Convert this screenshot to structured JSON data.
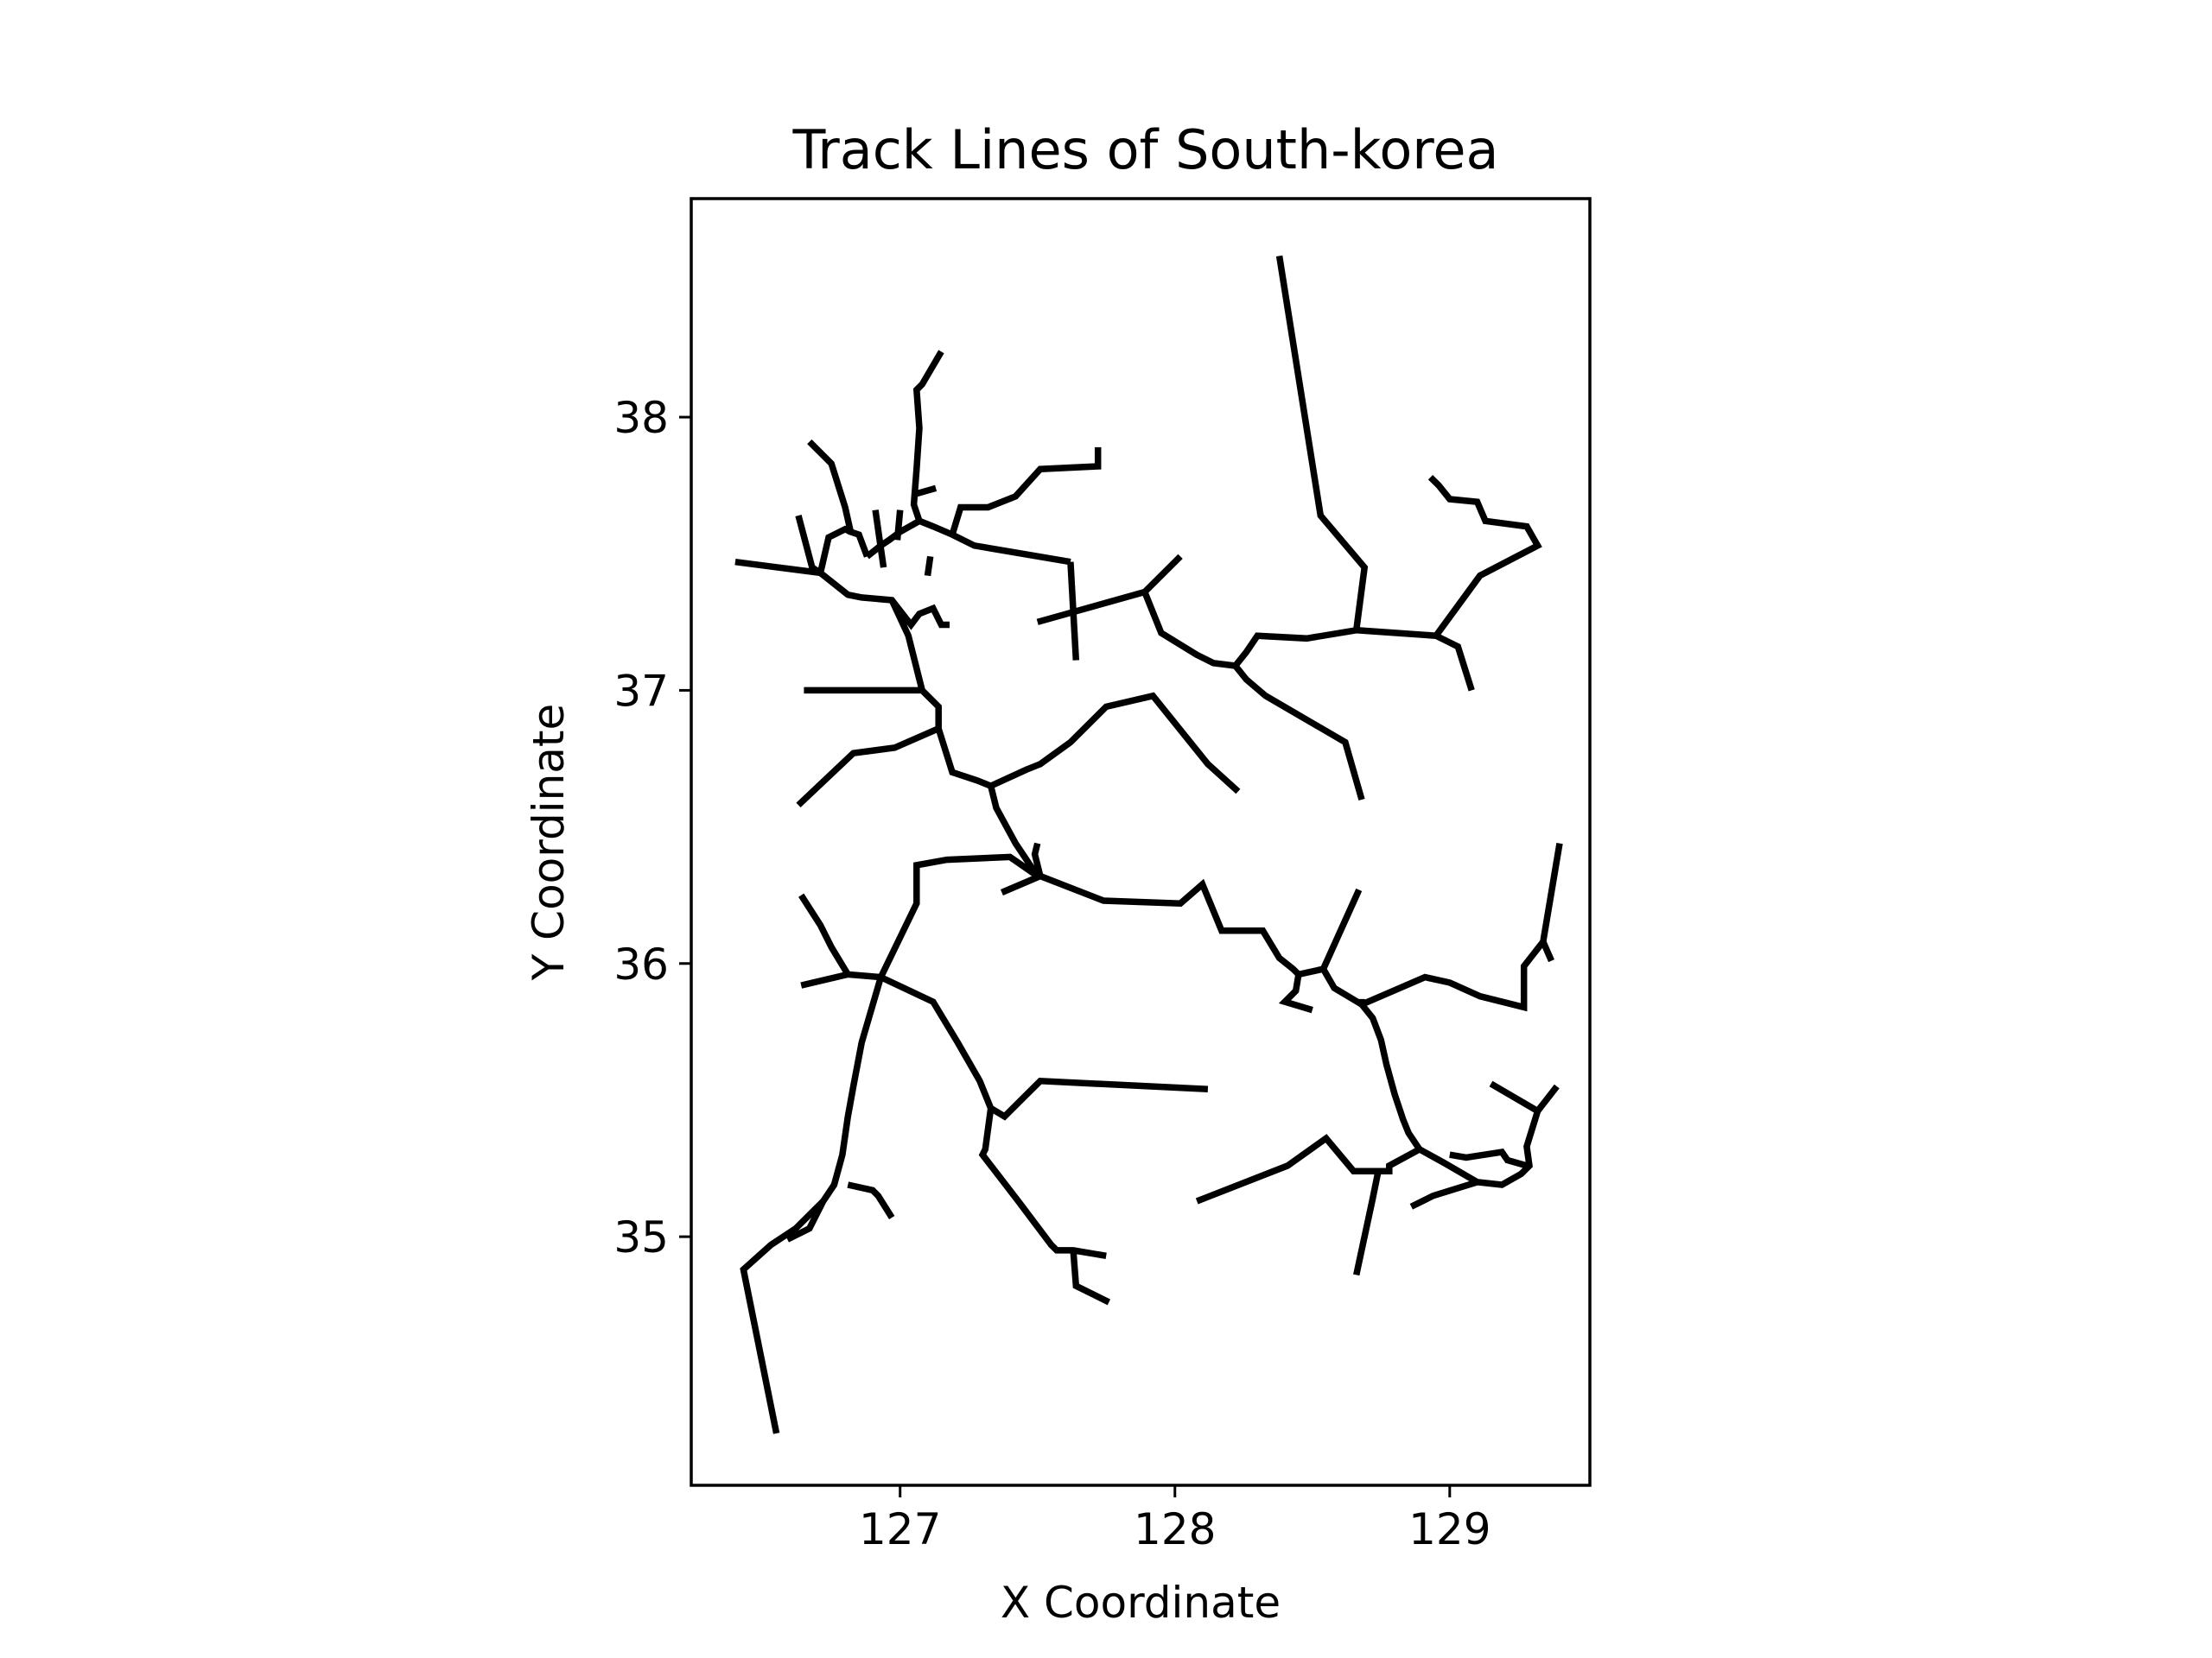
{
  "chart_data": {
    "type": "line",
    "title": "Track Lines of South-korea",
    "xlabel": "X Coordinate",
    "ylabel": "Y Coordinate",
    "xlim": [
      126.24,
      129.51
    ],
    "ylim": [
      34.09,
      38.8
    ],
    "xticks": [
      127,
      128,
      129
    ],
    "yticks": [
      35,
      36,
      37,
      38
    ],
    "xtick_labels": [
      "127",
      "128",
      "129"
    ],
    "ytick_labels": [
      "35",
      "36",
      "37",
      "38"
    ],
    "grid": false,
    "legend": "none",
    "line_color": "#000000",
    "series": [
      {
        "x": [
          128.38,
          128.53,
          128.69,
          128.66
        ],
        "y": [
          38.59,
          37.64,
          37.45,
          37.22
        ]
      },
      {
        "x": [
          128.66,
          128.95,
          129.11,
          129.32,
          129.28,
          129.13,
          129.1,
          129.0,
          128.96,
          128.93
        ],
        "y": [
          37.22,
          37.2,
          37.42,
          37.53,
          37.6,
          37.62,
          37.69,
          37.7,
          37.75,
          37.78
        ]
      },
      {
        "x": [
          128.95,
          129.03,
          129.08
        ],
        "y": [
          37.2,
          37.16,
          37.0
        ]
      },
      {
        "x": [
          128.66,
          128.48,
          128.3,
          128.26,
          128.22,
          128.14,
          128.08,
          127.95,
          127.89,
          127.5
        ],
        "y": [
          37.22,
          37.19,
          37.2,
          37.14,
          37.09,
          37.1,
          37.13,
          37.21,
          37.36,
          37.25
        ]
      },
      {
        "x": [
          128.22,
          128.26,
          128.33,
          128.62,
          128.68
        ],
        "y": [
          37.09,
          37.04,
          36.98,
          36.81,
          36.6
        ]
      },
      {
        "x": [
          127.89,
          128.02
        ],
        "y": [
          37.36,
          37.49
        ]
      },
      {
        "x": [
          127.64,
          127.62
        ],
        "y": [
          37.11,
          37.47
        ]
      },
      {
        "x": [
          127.62,
          127.27,
          127.19,
          127.12,
          127.07,
          127.0,
          126.96,
          126.93,
          126.88
        ],
        "y": [
          37.47,
          37.53,
          37.57,
          37.6,
          37.62,
          37.58,
          37.55,
          37.53,
          37.49
        ]
      },
      {
        "x": [
          127.19,
          127.22,
          127.32,
          127.42,
          127.51,
          127.72,
          127.72
        ],
        "y": [
          37.57,
          37.67,
          37.67,
          37.71,
          37.81,
          37.82,
          37.89
        ]
      },
      {
        "x": [
          127.07,
          127.05,
          127.06,
          127.07,
          127.06,
          127.08,
          127.15
        ],
        "y": [
          37.62,
          37.68,
          37.81,
          37.96,
          38.1,
          38.12,
          38.24
        ]
      },
      {
        "x": [
          127.0,
          126.99
        ],
        "y": [
          37.66,
          37.55
        ]
      },
      {
        "x": [
          126.91,
          126.93,
          126.94
        ],
        "y": [
          37.66,
          37.52,
          37.45
        ]
      },
      {
        "x": [
          127.06,
          127.13
        ],
        "y": [
          37.72,
          37.74
        ]
      },
      {
        "x": [
          127.11,
          127.1
        ],
        "y": [
          37.49,
          37.42
        ]
      },
      {
        "x": [
          126.88,
          126.85,
          126.82,
          126.8,
          126.75,
          126.67
        ],
        "y": [
          37.49,
          37.57,
          37.58,
          37.67,
          37.83,
          37.91
        ]
      },
      {
        "x": [
          126.82,
          126.8,
          126.74,
          126.71,
          126.68,
          126.63
        ],
        "y": [
          37.58,
          37.59,
          37.56,
          37.43,
          37.45,
          37.64
        ]
      },
      {
        "x": [
          126.71,
          126.4
        ],
        "y": [
          37.43,
          37.47
        ]
      },
      {
        "x": [
          126.71,
          126.81,
          126.86,
          126.97,
          127.04,
          127.07,
          127.12,
          127.15,
          127.18
        ],
        "y": [
          37.43,
          37.35,
          37.34,
          37.33,
          37.24,
          37.28,
          37.3,
          37.24,
          37.24
        ]
      },
      {
        "x": [
          126.97,
          127.03,
          127.08,
          127.14,
          127.14,
          127.19,
          127.28,
          127.33,
          127.35,
          127.42,
          127.48,
          127.5
        ],
        "y": [
          37.33,
          37.2,
          37.0,
          36.94,
          36.86,
          36.7,
          36.67,
          36.65,
          36.57,
          36.44,
          36.35,
          36.32
        ]
      },
      {
        "x": [
          127.08,
          126.65
        ],
        "y": [
          37.0,
          37.0
        ]
      },
      {
        "x": [
          127.14,
          126.98,
          126.83,
          126.63
        ],
        "y": [
          36.86,
          36.79,
          36.77,
          36.58
        ]
      },
      {
        "x": [
          127.33,
          127.46,
          127.51,
          127.62,
          127.75,
          127.92,
          128.12,
          128.23
        ],
        "y": [
          36.65,
          36.71,
          36.73,
          36.81,
          36.94,
          36.98,
          36.73,
          36.63
        ]
      },
      {
        "x": [
          127.5,
          127.49,
          127.51
        ],
        "y": [
          36.44,
          36.4,
          36.32
        ]
      },
      {
        "x": [
          127.5,
          127.4,
          127.17,
          127.06,
          127.06,
          126.93
        ],
        "y": [
          36.32,
          36.39,
          36.38,
          36.36,
          36.22,
          35.95
        ]
      },
      {
        "x": [
          127.51,
          127.37
        ],
        "y": [
          36.32,
          36.26
        ]
      },
      {
        "x": [
          127.51,
          127.74,
          128.02,
          128.1,
          128.17,
          128.32,
          128.38,
          128.43,
          128.45,
          128.54,
          128.58,
          128.68,
          128.68
        ],
        "y": [
          36.32,
          36.23,
          36.22,
          36.29,
          36.12,
          36.12,
          36.02,
          35.98,
          35.96,
          35.98,
          35.91,
          35.85,
          35.87
        ]
      },
      {
        "x": [
          128.54,
          128.67
        ],
        "y": [
          35.98,
          36.27
        ]
      },
      {
        "x": [
          128.45,
          128.44,
          128.4,
          128.5
        ],
        "y": [
          35.96,
          35.9,
          35.86,
          35.83
        ]
      },
      {
        "x": [
          128.68,
          128.72,
          128.75,
          128.77,
          128.8,
          128.83,
          128.85,
          128.89
        ],
        "y": [
          35.85,
          35.8,
          35.72,
          35.63,
          35.52,
          35.43,
          35.38,
          35.32
        ]
      },
      {
        "x": [
          128.68,
          128.91,
          129.0,
          129.11,
          129.27,
          129.27,
          129.34,
          129.4
        ],
        "y": [
          35.85,
          35.95,
          35.93,
          35.88,
          35.84,
          35.99,
          36.08,
          36.44
        ]
      },
      {
        "x": [
          129.34,
          129.37
        ],
        "y": [
          36.08,
          36.01
        ]
      },
      {
        "x": [
          128.89,
          128.78,
          128.78,
          128.65,
          128.55,
          128.41,
          128.08
        ],
        "y": [
          35.32,
          35.26,
          35.24,
          35.24,
          35.36,
          35.26,
          35.13
        ]
      },
      {
        "x": [
          128.89,
          128.98,
          129.1,
          129.19,
          129.26,
          129.29,
          129.28,
          129.32
        ],
        "y": [
          35.32,
          35.27,
          35.2,
          35.19,
          35.23,
          35.26,
          35.33,
          35.46
        ]
      },
      {
        "x": [
          129.32,
          129.39
        ],
        "y": [
          35.46,
          35.55
        ]
      },
      {
        "x": [
          129.32,
          129.15
        ],
        "y": [
          35.46,
          35.56
        ]
      },
      {
        "x": [
          129.28,
          129.21,
          129.19,
          129.06,
          129.0
        ],
        "y": [
          35.26,
          35.28,
          35.31,
          35.29,
          35.3
        ]
      },
      {
        "x": [
          129.1,
          128.94,
          128.86
        ],
        "y": [
          35.2,
          35.15,
          35.11
        ]
      },
      {
        "x": [
          128.74,
          128.72,
          128.66
        ],
        "y": [
          35.24,
          35.14,
          34.86
        ]
      },
      {
        "x": [
          126.93,
          127.12,
          127.21,
          127.29,
          127.33,
          127.38,
          127.51,
          128.12
        ],
        "y": [
          35.95,
          35.86,
          35.71,
          35.57,
          35.47,
          35.44,
          35.57,
          35.54
        ]
      },
      {
        "x": [
          127.33,
          127.31,
          127.3,
          127.43,
          127.55,
          127.57,
          127.63,
          127.75
        ],
        "y": [
          35.47,
          35.32,
          35.3,
          35.13,
          34.97,
          34.95,
          34.95,
          34.93
        ]
      },
      {
        "x": [
          127.63,
          127.64,
          127.76
        ],
        "y": [
          34.95,
          34.82,
          34.76
        ]
      },
      {
        "x": [
          126.93,
          126.86,
          126.83,
          126.81,
          126.79,
          126.76,
          126.72,
          126.67,
          126.59
        ],
        "y": [
          35.95,
          35.71,
          35.55,
          35.44,
          35.3,
          35.19,
          35.13,
          35.03,
          34.99
        ]
      },
      {
        "x": [
          126.93,
          126.81,
          126.64
        ],
        "y": [
          35.95,
          35.96,
          35.92
        ]
      },
      {
        "x": [
          126.81,
          126.75,
          126.71,
          126.64
        ],
        "y": [
          35.96,
          36.06,
          36.14,
          36.25
        ]
      },
      {
        "x": [
          126.81,
          126.9,
          126.92,
          126.97
        ],
        "y": [
          35.19,
          35.17,
          35.15,
          35.07
        ]
      },
      {
        "x": [
          126.72,
          126.62,
          126.53,
          126.43,
          126.55
        ],
        "y": [
          35.13,
          35.03,
          34.97,
          34.88,
          34.28
        ]
      }
    ]
  }
}
